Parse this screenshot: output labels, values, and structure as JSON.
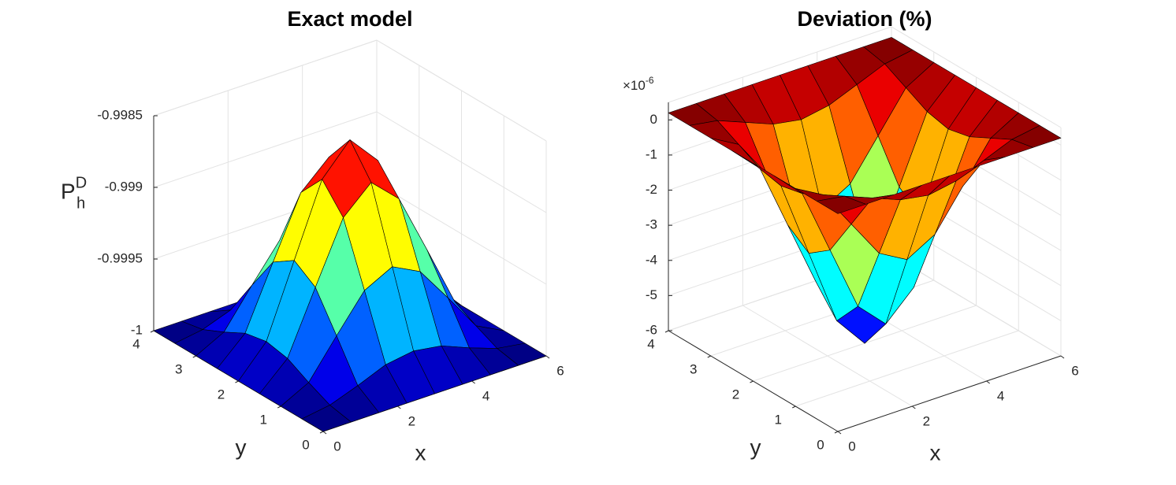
{
  "chart_data": [
    {
      "type": "surface",
      "title": "Exact model",
      "x": [
        0,
        0.75,
        1.5,
        2.25,
        3,
        3.75,
        4.5,
        5.25,
        6
      ],
      "y": [
        0,
        0.5,
        1,
        1.5,
        2,
        2.5,
        3,
        3.5,
        4
      ],
      "z": [
        [
          -1,
          -1,
          -1,
          -1,
          -1,
          -1,
          -1,
          -1,
          -1
        ],
        [
          -1,
          -0.99997,
          -0.9999,
          -0.99982,
          -0.99979,
          -0.99982,
          -0.9999,
          -0.99997,
          -1
        ],
        [
          -1,
          -0.9999,
          -0.99964,
          -0.99939,
          -0.99929,
          -0.99939,
          -0.99964,
          -0.9999,
          -1
        ],
        [
          -1,
          -0.99982,
          -0.99939,
          -0.99897,
          -0.99879,
          -0.99897,
          -0.99939,
          -0.99982,
          -1
        ],
        [
          -1,
          -0.99979,
          -0.99929,
          -0.99879,
          -0.99858,
          -0.99879,
          -0.99929,
          -0.99979,
          -1
        ],
        [
          -1,
          -0.99982,
          -0.99939,
          -0.99897,
          -0.99879,
          -0.99897,
          -0.99939,
          -0.99982,
          -1
        ],
        [
          -1,
          -0.9999,
          -0.99964,
          -0.99939,
          -0.99929,
          -0.99939,
          -0.99964,
          -0.9999,
          -1
        ],
        [
          -1,
          -0.99997,
          -0.9999,
          -0.99982,
          -0.99979,
          -0.99982,
          -0.9999,
          -0.99997,
          -1
        ],
        [
          -1,
          -1,
          -1,
          -1,
          -1,
          -1,
          -1,
          -1,
          -1
        ]
      ],
      "xlim": [
        0,
        6
      ],
      "ylim": [
        0,
        4
      ],
      "zlim": [
        -1,
        -0.9985
      ],
      "xticks": [
        0,
        2,
        4,
        6
      ],
      "yticks": [
        0,
        1,
        2,
        3,
        4
      ],
      "zticks": [
        -1,
        -0.9995,
        -0.999,
        -0.9985
      ],
      "xlabel": "x",
      "ylabel": "y",
      "zlabel": {
        "text": "P",
        "sub": "h",
        "sup": "D"
      },
      "colormap": "jet",
      "grid": true,
      "edge_color": "#000000"
    },
    {
      "type": "surface",
      "title": "Deviation (%)",
      "x": [
        0,
        0.75,
        1.5,
        2.25,
        3,
        3.75,
        4.5,
        5.25,
        6
      ],
      "y": [
        0,
        0.5,
        1,
        1.5,
        2,
        2.5,
        3,
        3.5,
        4
      ],
      "z": [
        [
          0.2,
          0.2,
          0.2,
          0.2,
          0.2,
          0.2,
          0.2,
          0.2,
          0.2
        ],
        [
          0.2,
          0.07,
          -0.25,
          -0.57,
          -0.71,
          -0.57,
          -0.25,
          0.07,
          0.2
        ],
        [
          0.2,
          -0.25,
          -1.35,
          -2.45,
          -2.9,
          -2.45,
          -1.35,
          -0.25,
          0.2
        ],
        [
          0.2,
          -0.57,
          -2.45,
          -4.32,
          -5.09,
          -4.32,
          -2.45,
          -0.57,
          0.2
        ],
        [
          0.2,
          -0.71,
          -2.9,
          -5.09,
          -6,
          -5.09,
          -2.9,
          -0.71,
          0.2
        ],
        [
          0.2,
          -0.57,
          -2.45,
          -4.32,
          -5.09,
          -4.32,
          -2.45,
          -0.57,
          0.2
        ],
        [
          0.2,
          -0.25,
          -1.35,
          -2.45,
          -2.9,
          -2.45,
          -1.35,
          -0.25,
          0.2
        ],
        [
          0.2,
          0.07,
          -0.25,
          -0.57,
          -0.71,
          -0.57,
          -0.25,
          0.07,
          0.2
        ],
        [
          0.2,
          0.2,
          0.2,
          0.2,
          0.2,
          0.2,
          0.2,
          0.2,
          0.2
        ]
      ],
      "xlim": [
        0,
        6
      ],
      "ylim": [
        0,
        4
      ],
      "zlim": [
        -6,
        0.5
      ],
      "xticks": [
        0,
        2,
        4,
        6
      ],
      "yticks": [
        0,
        1,
        2,
        3,
        4
      ],
      "zticks": [
        -6,
        -5,
        -4,
        -3,
        -2,
        -1,
        0
      ],
      "z_multiplier": {
        "base": "×10",
        "exponent": "-6"
      },
      "xlabel": "x",
      "ylabel": "y",
      "colormap": "jet",
      "grid": true,
      "edge_color": "#000000"
    }
  ]
}
